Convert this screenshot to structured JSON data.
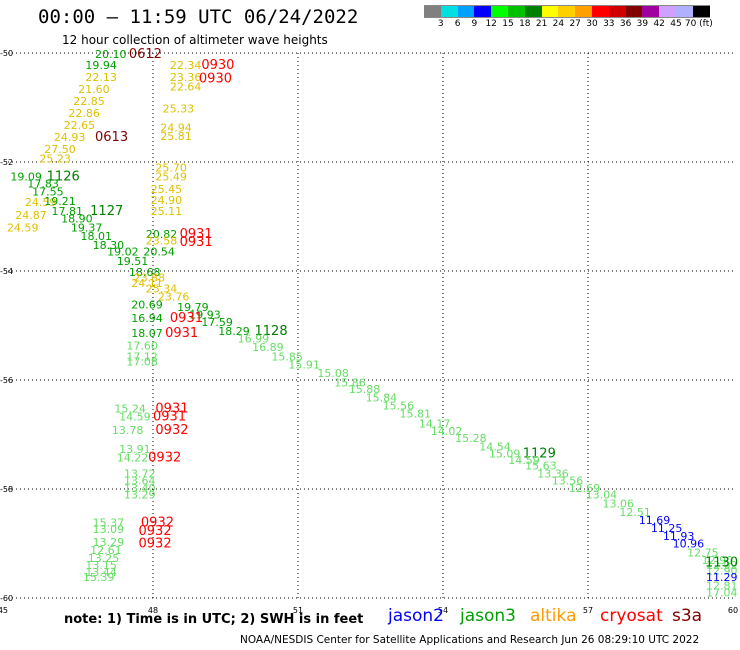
{
  "title": "00:00 — 11:59 UTC 06/24/2022",
  "subtitle": "12 hour collection of altimeter wave heights",
  "colorbar": {
    "colors": [
      "#808080",
      "#00e0e0",
      "#00a0ff",
      "#0000ff",
      "#00ff00",
      "#00c000",
      "#008000",
      "#ffff00",
      "#ffd000",
      "#ffa000",
      "#ff0000",
      "#d00000",
      "#800000",
      "#a000a0",
      "#d0a0ff",
      "#b0b0ff",
      "#000000"
    ],
    "labels": [
      "3",
      "6",
      "9",
      "12",
      "15",
      "18",
      "21",
      "24",
      "27",
      "30",
      "33",
      "36",
      "39",
      "42",
      "45",
      "70 (ft)"
    ]
  },
  "axes": {
    "lon_ticks": [
      "45",
      "48",
      "51",
      "54",
      "57",
      "60"
    ],
    "lat_ticks": [
      "-50",
      "-52",
      "-54",
      "-56",
      "-58",
      "-60"
    ]
  },
  "map_data": {
    "lon_range": [
      45,
      60
    ],
    "lat_range": [
      -50,
      -60
    ],
    "colors": {
      "ylw": "#e0c000",
      "bry": "#ffd000",
      "lg": "#66dd66",
      "g": "#00a000",
      "dg": "#008000",
      "b": "#0000ff",
      "r": "#ff0000",
      "dr": "#800000"
    },
    "labels": [
      {
        "t": "0612",
        "lon": 47.5,
        "lat": -50.0,
        "c": "dr",
        "s": 13
      },
      {
        "t": "20.10",
        "lon": 46.8,
        "lat": -50.0,
        "c": "g",
        "s": 11
      },
      {
        "t": "19.94",
        "lon": 46.6,
        "lat": -50.2,
        "c": "g",
        "s": 11
      },
      {
        "t": "22.34",
        "lon": 48.35,
        "lat": -50.2,
        "c": "ylw",
        "s": 11
      },
      {
        "t": "0930",
        "lon": 49.0,
        "lat": -50.2,
        "c": "r",
        "s": 13
      },
      {
        "t": "23.36",
        "lon": 48.35,
        "lat": -50.42,
        "c": "ylw",
        "s": 11
      },
      {
        "t": "0930",
        "lon": 48.95,
        "lat": -50.45,
        "c": "r",
        "s": 13
      },
      {
        "t": "22.64",
        "lon": 48.35,
        "lat": -50.6,
        "c": "ylw",
        "s": 11
      },
      {
        "t": "22.13",
        "lon": 46.6,
        "lat": -50.42,
        "c": "ylw",
        "s": 11
      },
      {
        "t": "21.60",
        "lon": 46.45,
        "lat": -50.64,
        "c": "ylw",
        "s": 11
      },
      {
        "t": "22.85",
        "lon": 46.35,
        "lat": -50.86,
        "c": "ylw",
        "s": 11
      },
      {
        "t": "22.86",
        "lon": 46.25,
        "lat": -51.08,
        "c": "ylw",
        "s": 11
      },
      {
        "t": "25.33",
        "lon": 48.2,
        "lat": -51.0,
        "c": "ylw",
        "s": 11
      },
      {
        "t": "22.65",
        "lon": 46.15,
        "lat": -51.3,
        "c": "ylw",
        "s": 11
      },
      {
        "t": "24.94",
        "lon": 48.15,
        "lat": -51.35,
        "c": "ylw",
        "s": 11
      },
      {
        "t": "25.81",
        "lon": 48.15,
        "lat": -51.5,
        "c": "ylw",
        "s": 11
      },
      {
        "t": "24.93",
        "lon": 45.95,
        "lat": -51.52,
        "c": "ylw",
        "s": 11
      },
      {
        "t": "0613",
        "lon": 46.8,
        "lat": -51.52,
        "c": "dr",
        "s": 13
      },
      {
        "t": "27.50",
        "lon": 45.75,
        "lat": -51.74,
        "c": "ylw",
        "s": 11
      },
      {
        "t": "25.23",
        "lon": 45.65,
        "lat": -51.92,
        "c": "ylw",
        "s": 11
      },
      {
        "t": "25.70",
        "lon": 48.05,
        "lat": -52.08,
        "c": "ylw",
        "s": 11
      },
      {
        "t": "25.49",
        "lon": 48.05,
        "lat": -52.25,
        "c": "ylw",
        "s": 11
      },
      {
        "t": "19.09",
        "lon": 45.05,
        "lat": -52.25,
        "c": "g",
        "s": 11
      },
      {
        "t": "1126",
        "lon": 45.8,
        "lat": -52.25,
        "c": "dg",
        "s": 13
      },
      {
        "t": "17.83",
        "lon": 45.4,
        "lat": -52.38,
        "c": "g",
        "s": 11
      },
      {
        "t": "17.55",
        "lon": 45.5,
        "lat": -52.52,
        "c": "g",
        "s": 11
      },
      {
        "t": "25.45",
        "lon": 47.95,
        "lat": -52.48,
        "c": "ylw",
        "s": 11
      },
      {
        "t": "24.90",
        "lon": 47.95,
        "lat": -52.68,
        "c": "ylw",
        "s": 11
      },
      {
        "t": "24.59",
        "lon": 45.35,
        "lat": -52.72,
        "c": "ylw",
        "s": 11
      },
      {
        "t": "19.21",
        "lon": 45.75,
        "lat": -52.7,
        "c": "g",
        "s": 11
      },
      {
        "t": "17.81",
        "lon": 45.9,
        "lat": -52.88,
        "c": "g",
        "s": 11
      },
      {
        "t": "1127",
        "lon": 46.7,
        "lat": -52.88,
        "c": "dg",
        "s": 13
      },
      {
        "t": "25.11",
        "lon": 47.95,
        "lat": -52.88,
        "c": "ylw",
        "s": 11
      },
      {
        "t": "24.87",
        "lon": 45.15,
        "lat": -52.95,
        "c": "ylw",
        "s": 11
      },
      {
        "t": "18.90",
        "lon": 46.1,
        "lat": -53.02,
        "c": "g",
        "s": 11
      },
      {
        "t": "19.37",
        "lon": 46.3,
        "lat": -53.18,
        "c": "g",
        "s": 11
      },
      {
        "t": "24.59",
        "lon": 44.98,
        "lat": -53.18,
        "c": "ylw",
        "s": 11
      },
      {
        "t": "18.01",
        "lon": 46.5,
        "lat": -53.34,
        "c": "g",
        "s": 11
      },
      {
        "t": "20.82",
        "lon": 47.85,
        "lat": -53.3,
        "c": "g",
        "s": 11
      },
      {
        "t": "0931",
        "lon": 48.55,
        "lat": -53.3,
        "c": "r",
        "s": 13
      },
      {
        "t": "23.58",
        "lon": 47.85,
        "lat": -53.42,
        "c": "ylw",
        "s": 11
      },
      {
        "t": "0931",
        "lon": 48.55,
        "lat": -53.45,
        "c": "r",
        "s": 13
      },
      {
        "t": "18.30",
        "lon": 46.75,
        "lat": -53.5,
        "c": "g",
        "s": 11
      },
      {
        "t": "19.02",
        "lon": 47.05,
        "lat": -53.62,
        "c": "g",
        "s": 11
      },
      {
        "t": "20.54",
        "lon": 47.8,
        "lat": -53.62,
        "c": "g",
        "s": 11
      },
      {
        "t": "19.51",
        "lon": 47.25,
        "lat": -53.8,
        "c": "g",
        "s": 11
      },
      {
        "t": "18.68",
        "lon": 47.5,
        "lat": -54.0,
        "c": "g",
        "s": 11
      },
      {
        "t": "23.88",
        "lon": 47.6,
        "lat": -54.1,
        "c": "ylw",
        "s": 11
      },
      {
        "t": "24.11",
        "lon": 47.55,
        "lat": -54.2,
        "c": "ylw",
        "s": 11
      },
      {
        "t": "25.34",
        "lon": 47.85,
        "lat": -54.3,
        "c": "ylw",
        "s": 11
      },
      {
        "t": "23.76",
        "lon": 48.1,
        "lat": -54.45,
        "c": "ylw",
        "s": 11
      },
      {
        "t": "20.69",
        "lon": 47.55,
        "lat": -54.6,
        "c": "g",
        "s": 11
      },
      {
        "t": "19.79",
        "lon": 48.5,
        "lat": -54.64,
        "c": "g",
        "s": 11
      },
      {
        "t": "19.93",
        "lon": 48.75,
        "lat": -54.78,
        "c": "g",
        "s": 11
      },
      {
        "t": "16.94",
        "lon": 47.55,
        "lat": -54.84,
        "c": "g",
        "s": 11
      },
      {
        "t": "0931",
        "lon": 48.35,
        "lat": -54.84,
        "c": "r",
        "s": 13
      },
      {
        "t": "17.59",
        "lon": 49.0,
        "lat": -54.92,
        "c": "g",
        "s": 11
      },
      {
        "t": "18.07",
        "lon": 47.55,
        "lat": -55.12,
        "c": "g",
        "s": 11
      },
      {
        "t": "0931",
        "lon": 48.25,
        "lat": -55.12,
        "c": "r",
        "s": 13
      },
      {
        "t": "18.29",
        "lon": 49.35,
        "lat": -55.08,
        "c": "g",
        "s": 11
      },
      {
        "t": "1128",
        "lon": 50.1,
        "lat": -55.08,
        "c": "dg",
        "s": 13
      },
      {
        "t": "16.99",
        "lon": 49.75,
        "lat": -55.22,
        "c": "lg",
        "s": 11
      },
      {
        "t": "16.89",
        "lon": 50.05,
        "lat": -55.38,
        "c": "lg",
        "s": 11
      },
      {
        "t": "17.60",
        "lon": 47.45,
        "lat": -55.35,
        "c": "lg",
        "s": 11
      },
      {
        "t": "15.85",
        "lon": 50.45,
        "lat": -55.55,
        "c": "lg",
        "s": 11
      },
      {
        "t": "17.12",
        "lon": 47.45,
        "lat": -55.55,
        "c": "lg",
        "s": 11
      },
      {
        "t": "17.08",
        "lon": 47.45,
        "lat": -55.64,
        "c": "lg",
        "s": 11
      },
      {
        "t": "15.91",
        "lon": 50.8,
        "lat": -55.7,
        "c": "lg",
        "s": 11
      },
      {
        "t": "15.08",
        "lon": 51.4,
        "lat": -55.85,
        "c": "lg",
        "s": 11
      },
      {
        "t": "15.86",
        "lon": 51.75,
        "lat": -56.03,
        "c": "lg",
        "s": 11
      },
      {
        "t": "15.88",
        "lon": 52.05,
        "lat": -56.15,
        "c": "lg",
        "s": 11
      },
      {
        "t": "15.84",
        "lon": 52.4,
        "lat": -56.3,
        "c": "lg",
        "s": 11
      },
      {
        "t": "15.56",
        "lon": 52.75,
        "lat": -56.45,
        "c": "lg",
        "s": 11
      },
      {
        "t": "15.24",
        "lon": 47.2,
        "lat": -56.5,
        "c": "lg",
        "s": 11
      },
      {
        "t": "0931",
        "lon": 48.05,
        "lat": -56.5,
        "c": "r",
        "s": 13
      },
      {
        "t": "15.81",
        "lon": 53.1,
        "lat": -56.6,
        "c": "lg",
        "s": 11
      },
      {
        "t": "14.59",
        "lon": 47.3,
        "lat": -56.65,
        "c": "lg",
        "s": 11
      },
      {
        "t": "0931",
        "lon": 48.0,
        "lat": -56.65,
        "c": "r",
        "s": 13
      },
      {
        "t": "14.17",
        "lon": 53.5,
        "lat": -56.78,
        "c": "lg",
        "s": 11
      },
      {
        "t": "14.02",
        "lon": 53.75,
        "lat": -56.92,
        "c": "lg",
        "s": 11
      },
      {
        "t": "13.78",
        "lon": 47.15,
        "lat": -56.9,
        "c": "lg",
        "s": 11
      },
      {
        "t": "0932",
        "lon": 48.05,
        "lat": -56.9,
        "c": "r",
        "s": 13
      },
      {
        "t": "15.28",
        "lon": 54.25,
        "lat": -57.05,
        "c": "lg",
        "s": 11
      },
      {
        "t": "14.54",
        "lon": 54.75,
        "lat": -57.2,
        "c": "lg",
        "s": 11
      },
      {
        "t": "13.91",
        "lon": 47.3,
        "lat": -57.25,
        "c": "lg",
        "s": 11
      },
      {
        "t": "15.09",
        "lon": 54.95,
        "lat": -57.33,
        "c": "lg",
        "s": 11
      },
      {
        "t": "1129",
        "lon": 55.65,
        "lat": -57.33,
        "c": "dg",
        "s": 13
      },
      {
        "t": "14.22",
        "lon": 47.25,
        "lat": -57.4,
        "c": "lg",
        "s": 11
      },
      {
        "t": "0932",
        "lon": 47.9,
        "lat": -57.4,
        "c": "r",
        "s": 13
      },
      {
        "t": "14.59",
        "lon": 55.35,
        "lat": -57.45,
        "c": "lg",
        "s": 11
      },
      {
        "t": "15.63",
        "lon": 55.7,
        "lat": -57.55,
        "c": "lg",
        "s": 11
      },
      {
        "t": "13.72",
        "lon": 47.4,
        "lat": -57.7,
        "c": "lg",
        "s": 11
      },
      {
        "t": "13.36",
        "lon": 55.95,
        "lat": -57.7,
        "c": "lg",
        "s": 11
      },
      {
        "t": "13.64",
        "lon": 47.4,
        "lat": -57.83,
        "c": "lg",
        "s": 11
      },
      {
        "t": "13.56",
        "lon": 56.25,
        "lat": -57.83,
        "c": "lg",
        "s": 11
      },
      {
        "t": "13.40",
        "lon": 47.4,
        "lat": -57.96,
        "c": "lg",
        "s": 11
      },
      {
        "t": "12.69",
        "lon": 56.6,
        "lat": -57.96,
        "c": "lg",
        "s": 11
      },
      {
        "t": "13.29",
        "lon": 47.4,
        "lat": -58.08,
        "c": "lg",
        "s": 11
      },
      {
        "t": "13.04",
        "lon": 56.95,
        "lat": -58.08,
        "c": "lg",
        "s": 11
      },
      {
        "t": "13.06",
        "lon": 57.3,
        "lat": -58.25,
        "c": "lg",
        "s": 11
      },
      {
        "t": "12.51",
        "lon": 57.65,
        "lat": -58.4,
        "c": "lg",
        "s": 11
      },
      {
        "t": "15.37",
        "lon": 46.75,
        "lat": -58.6,
        "c": "lg",
        "s": 11
      },
      {
        "t": "0932",
        "lon": 47.75,
        "lat": -58.6,
        "c": "r",
        "s": 13
      },
      {
        "t": "11.69",
        "lon": 58.05,
        "lat": -58.55,
        "c": "b",
        "s": 11
      },
      {
        "t": "13.09",
        "lon": 46.75,
        "lat": -58.72,
        "c": "lg",
        "s": 11
      },
      {
        "t": "0932",
        "lon": 47.7,
        "lat": -58.75,
        "c": "r",
        "s": 13
      },
      {
        "t": "11.25",
        "lon": 58.3,
        "lat": -58.7,
        "c": "b",
        "s": 11
      },
      {
        "t": "11.93",
        "lon": 58.55,
        "lat": -58.84,
        "c": "b",
        "s": 11
      },
      {
        "t": "13.29",
        "lon": 46.75,
        "lat": -58.95,
        "c": "lg",
        "s": 11
      },
      {
        "t": "0932",
        "lon": 47.7,
        "lat": -58.98,
        "c": "r",
        "s": 13
      },
      {
        "t": "10.96",
        "lon": 58.75,
        "lat": -58.98,
        "c": "b",
        "s": 11
      },
      {
        "t": "12.61",
        "lon": 46.7,
        "lat": -59.1,
        "c": "lg",
        "s": 11
      },
      {
        "t": "12.75",
        "lon": 59.05,
        "lat": -59.15,
        "c": "lg",
        "s": 11
      },
      {
        "t": "13.25",
        "lon": 46.65,
        "lat": -59.25,
        "c": "lg",
        "s": 11
      },
      {
        "t": "12.90",
        "lon": 59.35,
        "lat": -59.28,
        "c": "lg",
        "s": 11
      },
      {
        "t": "13.15",
        "lon": 46.6,
        "lat": -59.38,
        "c": "lg",
        "s": 11
      },
      {
        "t": "12.92",
        "lon": 59.65,
        "lat": -59.38,
        "c": "lg",
        "s": 11
      },
      {
        "t": "1130",
        "lon": 60.1,
        "lat": -59.33,
        "c": "dg",
        "s": 13
      },
      {
        "t": "13.44",
        "lon": 46.6,
        "lat": -59.5,
        "c": "lg",
        "s": 11
      },
      {
        "t": "12.90",
        "lon": 59.9,
        "lat": -59.48,
        "c": "lg",
        "s": 11
      },
      {
        "t": "11.29",
        "lon": 60.05,
        "lat": -59.6,
        "c": "b",
        "s": 11
      },
      {
        "t": "15.39",
        "lon": 46.55,
        "lat": -59.6,
        "c": "lg",
        "s": 11
      },
      {
        "t": "12.81",
        "lon": 60.35,
        "lat": -59.75,
        "c": "lg",
        "s": 11
      },
      {
        "t": "17.04",
        "lon": 60.75,
        "lat": -59.88,
        "c": "lg",
        "s": 11
      }
    ]
  },
  "footer": {
    "note": "note:  1) Time is in UTC;  2) SWH is in feet",
    "satellites": [
      {
        "name": "jason2",
        "color": "#0000ff"
      },
      {
        "name": "jason3",
        "color": "#00a000"
      },
      {
        "name": "altika",
        "color": "#ff9900"
      },
      {
        "name": "cryosat",
        "color": "#ff0000"
      },
      {
        "name": "s3a",
        "color": "#800000"
      }
    ],
    "credit": "NOAA/NESDIS Center for Satellite Applications and Research    Jun 26 08:29:10 UTC 2022"
  }
}
